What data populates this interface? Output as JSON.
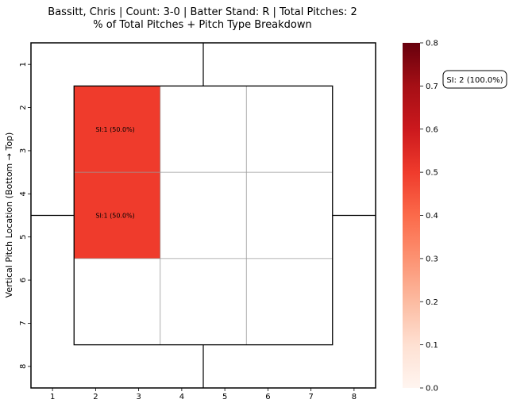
{
  "chart_data": {
    "type": "heatmap",
    "title_lines": [
      "Bassitt, Chris | Count: 3-0 | Batter Stand: R | Total Pitches: 2",
      "% of Total Pitches + Pitch Type Breakdown"
    ],
    "ylabel": "Vertical Pitch Location (Bottom → Top)",
    "xlabel": "",
    "x_ticks": [
      "1",
      "2",
      "3",
      "4",
      "5",
      "6",
      "7",
      "8"
    ],
    "y_ticks": [
      "1",
      "2",
      "3",
      "4",
      "5",
      "6",
      "7",
      "8"
    ],
    "xlim": [
      0.5,
      8.5
    ],
    "ylim": [
      0.5,
      8.5
    ],
    "y_inverted": true,
    "cells": [
      {
        "x_range": [
          1.5,
          3.5
        ],
        "y_range": [
          1.5,
          3.5
        ],
        "value": 0.5,
        "label": "SI:1 (50.0%)",
        "label_at": [
          2,
          2.5
        ]
      },
      {
        "x_range": [
          1.5,
          3.5
        ],
        "y_range": [
          3.5,
          5.5
        ],
        "value": 0.5,
        "label": "SI:1 (50.0%)",
        "label_at": [
          2,
          4.5
        ]
      }
    ],
    "strike_zone": {
      "x_range": [
        1.5,
        7.5
      ],
      "y_range": [
        1.5,
        7.5
      ],
      "x_dividers": [
        3.5,
        5.5
      ],
      "y_dividers": [
        3.5,
        5.5
      ]
    },
    "quadrant_lines": {
      "x": 4.5,
      "y": 4.5
    },
    "colorbar": {
      "colormap": "Reds",
      "range": [
        0,
        0.8
      ],
      "ticks": [
        "0.0",
        "0.1",
        "0.2",
        "0.3",
        "0.4",
        "0.5",
        "0.6",
        "0.7",
        "0.8"
      ]
    },
    "legend_text": "SI: 2 (100.0%)",
    "colors": {
      "high": "#67000d",
      "low": "#fff5f0",
      "grid_line": "#999999",
      "border": "#000000"
    }
  }
}
